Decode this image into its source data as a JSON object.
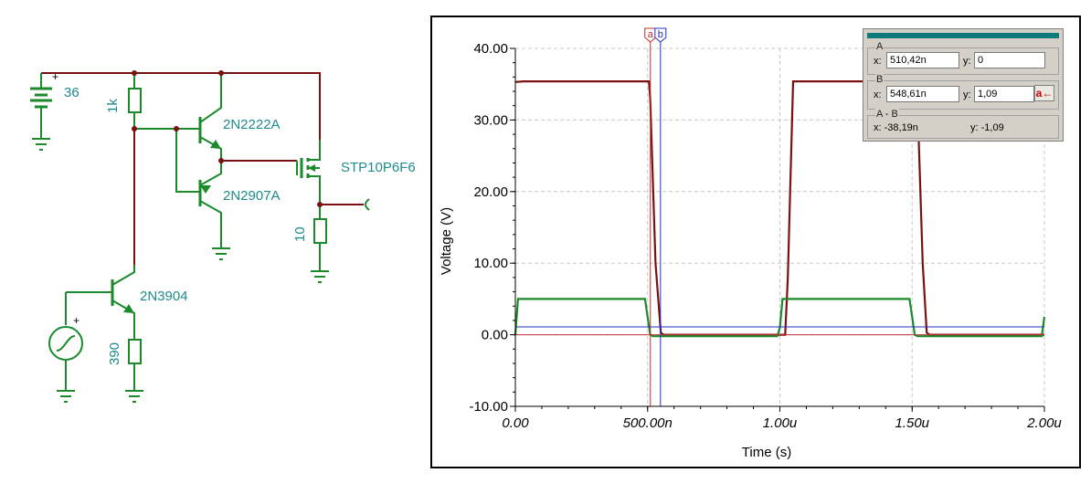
{
  "schematic": {
    "battery_label": "36",
    "r1_label": "1k",
    "q_npn_top": "2N2222A",
    "q_pnp": "2N2907A",
    "q_mosfet": "STP10P6F6",
    "r_load_label": "10",
    "q_driver": "2N3904",
    "r_emitter_label": "390",
    "battery_plus": "+",
    "source_plus": "+"
  },
  "cursor_panel": {
    "a": {
      "label": "A",
      "x_label": "x:",
      "x_value": "510,42n",
      "y_label": "y:",
      "y_value": "0"
    },
    "b": {
      "label": "B",
      "x_label": "x:",
      "x_value": "548,61n",
      "y_label": "y:",
      "y_value": "1,09"
    },
    "diff": {
      "label": "A - B",
      "x_text": "x:  -38,19n",
      "y_text": "y: -1,09"
    },
    "arrow_icon": "cursor-select-icon",
    "arrow_text": "a←"
  },
  "cursor_markers": {
    "a": "a",
    "b": "b"
  },
  "chart_data": {
    "type": "line",
    "xlabel": "Time (s)",
    "ylabel": "Voltage (V)",
    "xlim": [
      0,
      2e-06
    ],
    "ylim": [
      -10,
      40
    ],
    "x_ticks": [
      {
        "v": 0,
        "label": "0.00"
      },
      {
        "v": 5e-07,
        "label": "500.00n"
      },
      {
        "v": 1e-06,
        "label": "1.00u"
      },
      {
        "v": 1.5e-06,
        "label": "1.50u"
      },
      {
        "v": 2e-06,
        "label": "2.00u"
      }
    ],
    "y_ticks": [
      {
        "v": 40,
        "label": "40.00"
      },
      {
        "v": 30,
        "label": "30.00"
      },
      {
        "v": 20,
        "label": "20.00"
      },
      {
        "v": 10,
        "label": "10.00"
      },
      {
        "v": 0,
        "label": "0.00"
      },
      {
        "v": -10,
        "label": "-10.00"
      }
    ],
    "grid": true,
    "series": [
      {
        "color": "#7a1010",
        "points": [
          [
            0,
            35.3
          ],
          [
            3e-08,
            35.4
          ],
          [
            5.05e-07,
            35.4
          ],
          [
            5.1e-07,
            33
          ],
          [
            5.3e-07,
            10
          ],
          [
            5.5e-07,
            0.3
          ],
          [
            5.6e-07,
            0
          ],
          [
            1.02e-06,
            0
          ],
          [
            1.03e-06,
            8
          ],
          [
            1.05e-06,
            35.4
          ],
          [
            1.51e-06,
            35.4
          ],
          [
            1.52e-06,
            33
          ],
          [
            1.54e-06,
            10
          ],
          [
            1.555e-06,
            0.3
          ],
          [
            1.565e-06,
            0
          ],
          [
            2e-06,
            0
          ]
        ]
      },
      {
        "color": "#1a8a2a",
        "points": [
          [
            0,
            0
          ],
          [
            1e-08,
            5
          ],
          [
            4.9e-07,
            5
          ],
          [
            5.1e-07,
            0
          ],
          [
            5.2e-07,
            -0.2
          ],
          [
            9.9e-07,
            -0.2
          ],
          [
            1e-06,
            1
          ],
          [
            1.01e-06,
            5
          ],
          [
            1.49e-06,
            5
          ],
          [
            1.51e-06,
            0
          ],
          [
            1.52e-06,
            -0.2
          ],
          [
            1.99e-06,
            -0.2
          ],
          [
            2e-06,
            2.5
          ]
        ]
      }
    ],
    "cursors": [
      {
        "name": "a",
        "x": 5.1042e-07,
        "y": 0,
        "color": "#c03030"
      },
      {
        "name": "b",
        "x": 5.4861e-07,
        "y": 1.09,
        "color": "#2030c0"
      }
    ]
  }
}
